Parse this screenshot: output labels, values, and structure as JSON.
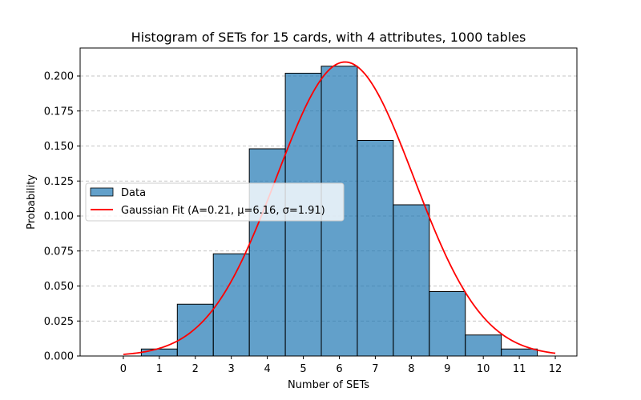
{
  "chart_data": {
    "type": "bar",
    "title": "Histogram of SETs for 15 cards, with 4 attributes, 1000 tables",
    "xlabel": "Number of SETs",
    "ylabel": "Probability",
    "xlim": [
      -1.2,
      12.6
    ],
    "ylim": [
      0,
      0.22
    ],
    "x_ticks": [
      0,
      1,
      2,
      3,
      4,
      5,
      6,
      7,
      8,
      9,
      10,
      11,
      12
    ],
    "y_ticks": [
      0.0,
      0.025,
      0.05,
      0.075,
      0.1,
      0.125,
      0.15,
      0.175,
      0.2
    ],
    "y_tick_labels": [
      "0.000",
      "0.025",
      "0.050",
      "0.075",
      "0.100",
      "0.125",
      "0.150",
      "0.175",
      "0.200"
    ],
    "grid": "y-dashed",
    "legend_position": "center-left",
    "bin_width": 1,
    "series": [
      {
        "name": "Data",
        "kind": "histogram",
        "color": "#1f77b4",
        "opacity": 0.7,
        "categories": [
          1,
          2,
          3,
          4,
          5,
          6,
          7,
          8,
          9,
          10,
          11
        ],
        "values": [
          0.005,
          0.037,
          0.073,
          0.148,
          0.202,
          0.207,
          0.154,
          0.108,
          0.046,
          0.015,
          0.005
        ]
      },
      {
        "name": "Gaussian Fit (A=0.21, μ=6.16, σ=1.91)",
        "kind": "line",
        "color": "#ff0000",
        "params": {
          "A": 0.21,
          "mu": 6.16,
          "sigma": 1.91
        },
        "x_range": [
          0,
          12
        ]
      }
    ]
  }
}
